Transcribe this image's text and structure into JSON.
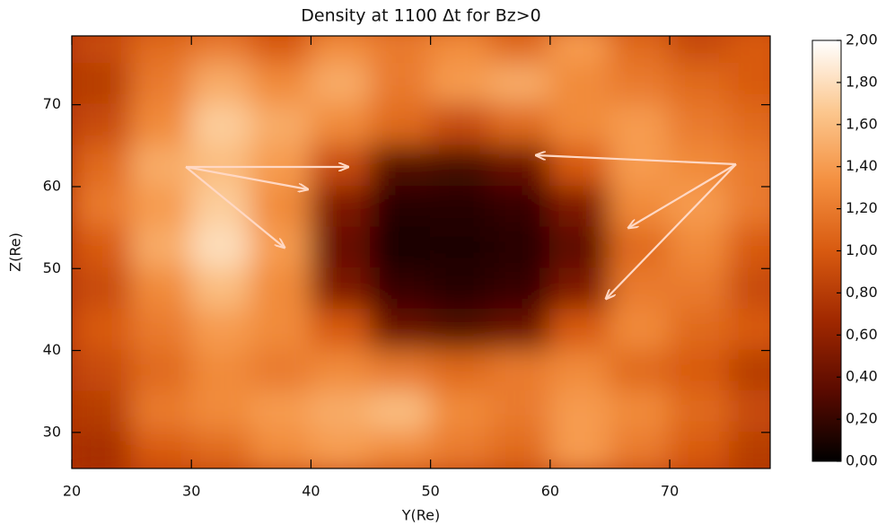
{
  "chart_data": {
    "type": "heatmap",
    "title": "Density at 1100 Δt for Bz>0",
    "x_label": "Y(Re)",
    "y_label": "Z(Re)",
    "x": [
      22.5,
      27.5,
      32.5,
      37.5,
      42.5,
      47.5,
      52.5,
      57.5,
      62.5,
      67.5,
      72.5,
      77.5
    ],
    "y": [
      77.5,
      72.5,
      67.5,
      62.5,
      57.5,
      52.5,
      47.5,
      42.5,
      37.5,
      32.5,
      27.5
    ],
    "z": [
      [
        900,
        1100,
        1200,
        1000,
        1300,
        1200,
        1300,
        1100,
        1400,
        1100,
        900,
        1000
      ],
      [
        800,
        1200,
        1500,
        1300,
        1500,
        1200,
        1400,
        1500,
        1300,
        1200,
        1100,
        1000
      ],
      [
        900,
        1300,
        1700,
        1500,
        1300,
        1100,
        900,
        1100,
        1300,
        1400,
        1200,
        1100
      ],
      [
        1100,
        1500,
        1600,
        1400,
        900,
        300,
        250,
        400,
        1000,
        1400,
        1300,
        1200
      ],
      [
        1200,
        1400,
        1700,
        1300,
        500,
        150,
        150,
        200,
        500,
        1300,
        1400,
        1200
      ],
      [
        1000,
        1500,
        1800,
        1400,
        400,
        80,
        100,
        150,
        350,
        1100,
        1300,
        1000
      ],
      [
        900,
        1300,
        1600,
        1300,
        500,
        200,
        150,
        200,
        500,
        1200,
        1200,
        900
      ],
      [
        1000,
        1200,
        1400,
        1300,
        1000,
        400,
        300,
        400,
        1000,
        1300,
        1100,
        1000
      ],
      [
        900,
        1100,
        1300,
        1200,
        1300,
        1200,
        1100,
        1200,
        1300,
        1100,
        1000,
        800
      ],
      [
        800,
        1200,
        1300,
        1400,
        1500,
        1600,
        1300,
        1200,
        1400,
        1300,
        1100,
        900
      ],
      [
        700,
        1000,
        1100,
        1300,
        1400,
        1300,
        1200,
        1100,
        1400,
        1200,
        1000,
        800
      ]
    ],
    "xlim": [
      20,
      78.4
    ],
    "ylim": [
      25.6,
      78.4
    ],
    "xticks": [
      20,
      30,
      40,
      50,
      60,
      70
    ],
    "yticks": [
      30,
      40,
      50,
      60,
      70
    ],
    "zlim": [
      0,
      2000
    ],
    "zticks": [
      {
        "value": 0,
        "label": "0,000"
      },
      {
        "value": 200,
        "label": "0,200"
      },
      {
        "value": 400,
        "label": "0,400"
      },
      {
        "value": 600,
        "label": "0,600"
      },
      {
        "value": 800,
        "label": "0,800"
      },
      {
        "value": 1000,
        "label": "1,000"
      },
      {
        "value": 1200,
        "label": "1,200"
      },
      {
        "value": 1400,
        "label": "1,400"
      },
      {
        "value": 1600,
        "label": "1,600"
      },
      {
        "value": 1800,
        "label": "1,800"
      },
      {
        "value": 2000,
        "label": "2,000"
      }
    ],
    "colormap": [
      "#000000",
      "#5a0a00",
      "#a02800",
      "#d85a10",
      "#f49040",
      "#fcc890",
      "#ffffff"
    ]
  }
}
